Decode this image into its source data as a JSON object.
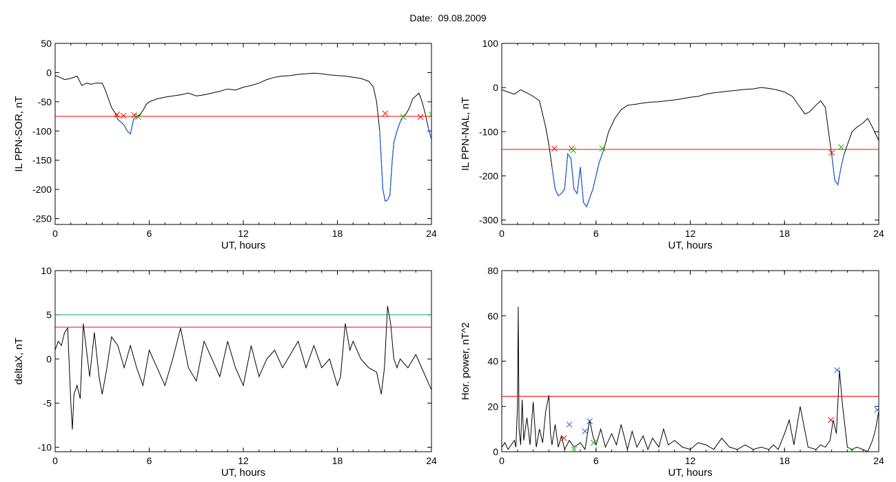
{
  "header": {
    "date_label": "Date:",
    "date_value": "09.08.2009"
  },
  "colors": {
    "trace": "#000000",
    "threshold": "#ff0000",
    "below_threshold": "#1f5fd6",
    "level2": "#00a0a0",
    "marker_red": "#ff0000",
    "marker_green": "#00c000",
    "marker_blue": "#1f5fd6"
  },
  "chart_data": [
    {
      "type": "line",
      "id": "sor",
      "xlabel": "UT, hours",
      "ylabel": "IL PPN-SOR, nT",
      "xlim": [
        0,
        24
      ],
      "ylim": [
        -260,
        50
      ],
      "xticks": [
        0,
        6,
        12,
        18,
        24
      ],
      "yticks": [
        50,
        0,
        -50,
        -100,
        -150,
        -200,
        -250
      ],
      "threshold": -75,
      "series": [
        {
          "x": [
            0,
            0.3,
            0.6,
            1,
            1.4,
            1.7,
            2,
            2.3,
            2.6,
            3,
            3.2,
            3.4,
            3.6,
            3.8,
            4,
            4.2,
            4.4,
            4.6,
            4.8,
            5,
            5.2,
            5.4,
            5.6,
            5.8,
            6,
            6.5,
            7,
            7.5,
            8,
            8.5,
            9,
            9.5,
            10,
            10.5,
            11,
            11.5,
            12,
            12.5,
            13,
            13.5,
            14,
            14.5,
            15,
            15.5,
            16,
            16.5,
            17,
            17.5,
            18,
            18.5,
            19,
            19.5,
            20,
            20.3,
            20.5,
            20.7,
            20.9,
            21.05,
            21.2,
            21.35,
            21.5,
            21.6,
            21.8,
            22,
            22.2,
            22.4,
            22.6,
            22.8,
            23,
            23.2,
            23.4,
            23.6,
            23.8,
            24
          ],
          "y": [
            -5,
            -8,
            -12,
            -10,
            -6,
            -22,
            -18,
            -20,
            -18,
            -18,
            -30,
            -45,
            -60,
            -68,
            -80,
            -85,
            -90,
            -100,
            -105,
            -80,
            -75,
            -72,
            -65,
            -55,
            -50,
            -45,
            -42,
            -40,
            -38,
            -35,
            -40,
            -38,
            -35,
            -32,
            -28,
            -30,
            -25,
            -22,
            -18,
            -12,
            -8,
            -6,
            -5,
            -3,
            -2,
            -1,
            -2,
            -4,
            -5,
            -6,
            -8,
            -10,
            -15,
            -25,
            -50,
            -100,
            -200,
            -220,
            -218,
            -210,
            -150,
            -120,
            -100,
            -85,
            -75,
            -70,
            -60,
            -45,
            -40,
            -35,
            -50,
            -70,
            -95,
            -115
          ]
        }
      ],
      "markers": [
        {
          "x": 3.95,
          "y": -72,
          "color": "red"
        },
        {
          "x": 4.35,
          "y": -74,
          "color": "red"
        },
        {
          "x": 5.05,
          "y": -73,
          "color": "red"
        },
        {
          "x": 5.3,
          "y": -76,
          "color": "green"
        },
        {
          "x": 21.05,
          "y": -70,
          "color": "red"
        },
        {
          "x": 22.2,
          "y": -76,
          "color": "green"
        },
        {
          "x": 23.3,
          "y": -76,
          "color": "red"
        },
        {
          "x": 24,
          "y": -72,
          "color": "green"
        }
      ]
    },
    {
      "type": "line",
      "id": "nal",
      "xlabel": "UT, hours",
      "ylabel": "IL PPN-NAL, nT",
      "xlim": [
        0,
        24
      ],
      "ylim": [
        -310,
        100
      ],
      "xticks": [
        0,
        6,
        12,
        18,
        24
      ],
      "yticks": [
        100,
        0,
        -100,
        -200,
        -300
      ],
      "threshold": -140,
      "series": [
        {
          "x": [
            0,
            0.4,
            0.8,
            1.2,
            1.6,
            2,
            2.4,
            2.8,
            3,
            3.2,
            3.4,
            3.6,
            3.8,
            4,
            4.2,
            4.4,
            4.6,
            4.8,
            5,
            5.2,
            5.4,
            5.6,
            5.8,
            6,
            6.2,
            6.5,
            6.8,
            7.2,
            7.6,
            8,
            8.5,
            9,
            9.5,
            10,
            10.5,
            11,
            11.5,
            12,
            12.5,
            13,
            13.5,
            14,
            14.5,
            15,
            15.5,
            16,
            16.5,
            17,
            17.5,
            18,
            18.5,
            19,
            19.3,
            19.6,
            20,
            20.3,
            20.6,
            20.8,
            21,
            21.2,
            21.4,
            21.6,
            21.8,
            22,
            22.3,
            22.6,
            23,
            23.3,
            23.6,
            24
          ],
          "y": [
            -5,
            -10,
            -15,
            -5,
            -12,
            -20,
            -30,
            -90,
            -130,
            -180,
            -230,
            -245,
            -240,
            -230,
            -150,
            -160,
            -230,
            -240,
            -180,
            -260,
            -270,
            -250,
            -230,
            -200,
            -170,
            -140,
            -100,
            -70,
            -50,
            -40,
            -38,
            -35,
            -33,
            -32,
            -30,
            -28,
            -25,
            -22,
            -20,
            -15,
            -12,
            -10,
            -8,
            -6,
            -4,
            -3,
            0,
            -2,
            -5,
            -10,
            -20,
            -45,
            -60,
            -55,
            -40,
            -30,
            -45,
            -100,
            -150,
            -210,
            -220,
            -180,
            -150,
            -130,
            -100,
            -90,
            -80,
            -70,
            -90,
            -120
          ]
        }
      ],
      "markers": [
        {
          "x": 3.35,
          "y": -138,
          "color": "red"
        },
        {
          "x": 4.45,
          "y": -138,
          "color": "red"
        },
        {
          "x": 4.55,
          "y": -142,
          "color": "green"
        },
        {
          "x": 6.4,
          "y": -138,
          "color": "green"
        },
        {
          "x": 21.0,
          "y": -148,
          "color": "red"
        },
        {
          "x": 21.6,
          "y": -135,
          "color": "green"
        }
      ]
    },
    {
      "type": "line",
      "id": "deltax",
      "xlabel": "UT, hours",
      "ylabel": "deltaX, nT",
      "xlim": [
        0,
        24
      ],
      "ylim": [
        -10.5,
        10
      ],
      "xticks": [
        0,
        6,
        12,
        18,
        24
      ],
      "yticks": [
        10,
        5,
        0,
        -5,
        -10
      ],
      "threshold": 3.6,
      "level2": 5,
      "series": [
        {
          "x": [
            0,
            0.2,
            0.4,
            0.6,
            0.8,
            1,
            1.1,
            1.2,
            1.4,
            1.6,
            1.8,
            2,
            2.2,
            2.5,
            2.8,
            3,
            3.3,
            3.6,
            4,
            4.4,
            4.8,
            5.2,
            5.6,
            6,
            6.5,
            7,
            7.5,
            8,
            8.5,
            9,
            9.5,
            10,
            10.5,
            11,
            11.5,
            12,
            12.5,
            13,
            13.5,
            14,
            14.5,
            15,
            15.5,
            16,
            16.5,
            17,
            17.5,
            18,
            18.2,
            18.5,
            18.8,
            19,
            19.5,
            20,
            20.5,
            20.8,
            21,
            21.2,
            21.4,
            21.6,
            21.8,
            22,
            22.5,
            23,
            23.5,
            24
          ],
          "y": [
            1,
            2,
            1.5,
            3,
            3.5,
            -5,
            -8,
            -4,
            -3,
            -4.5,
            4,
            1,
            -2,
            3,
            -2,
            -4,
            -1,
            2.5,
            1.5,
            -1,
            1.5,
            -1,
            -3,
            1,
            -1,
            -3,
            0,
            3.5,
            -1,
            -2.5,
            2,
            0,
            -2,
            2,
            -1,
            -3,
            1.5,
            -2,
            0,
            1,
            -1,
            0.5,
            2,
            -1,
            1.5,
            -1,
            0,
            -3,
            -2,
            4,
            1,
            2,
            0,
            -1,
            -1.5,
            -4,
            -1,
            6,
            4,
            0,
            -1,
            0,
            -1,
            0.5,
            -1.5,
            -3.5
          ]
        }
      ]
    },
    {
      "type": "line",
      "id": "power",
      "xlabel": "UT, hours",
      "ylabel": "Hor. power, nT^2",
      "xlim": [
        0,
        24
      ],
      "ylim": [
        0,
        80
      ],
      "xticks": [
        0,
        6,
        12,
        18,
        24
      ],
      "yticks": [
        80,
        60,
        40,
        20,
        0
      ],
      "threshold": 24.5,
      "series": [
        {
          "x": [
            0,
            0.2,
            0.4,
            0.6,
            0.8,
            0.9,
            1,
            1.05,
            1.1,
            1.2,
            1.3,
            1.4,
            1.6,
            1.8,
            2,
            2.2,
            2.4,
            2.6,
            2.8,
            3,
            3.1,
            3.2,
            3.4,
            3.6,
            3.8,
            4,
            4.3,
            4.6,
            5,
            5.3,
            5.6,
            5.8,
            6,
            6.3,
            6.6,
            7,
            7.3,
            7.6,
            8,
            8.3,
            8.6,
            9,
            9.3,
            9.6,
            10,
            10.3,
            10.6,
            11,
            11.5,
            12,
            12.5,
            13,
            13.5,
            14,
            14.5,
            15,
            15.5,
            16,
            16.5,
            17,
            17.3,
            17.6,
            18,
            18.3,
            18.6,
            19,
            19.5,
            20,
            20.3,
            20.6,
            20.9,
            21.1,
            21.3,
            21.5,
            21.7,
            22,
            22.3,
            22.6,
            23,
            23.3,
            23.6,
            23.8,
            24
          ],
          "y": [
            2,
            4,
            1,
            3,
            5,
            2,
            20,
            64,
            10,
            3,
            23,
            5,
            15,
            3,
            22,
            2,
            10,
            4,
            18,
            25,
            8,
            3,
            12,
            2,
            7,
            1,
            5,
            2,
            4,
            1,
            14,
            7,
            3,
            10,
            2,
            8,
            3,
            12,
            1,
            9,
            2,
            7,
            1,
            6,
            2,
            10,
            3,
            5,
            2,
            1,
            4,
            3,
            1,
            6,
            2,
            1,
            3,
            1,
            2,
            1,
            3,
            1,
            8,
            14,
            3,
            20,
            2,
            1,
            3,
            2,
            5,
            14,
            8,
            36,
            20,
            2,
            1,
            2,
            1,
            0,
            5,
            10,
            18
          ]
        }
      ],
      "markers": [
        {
          "x": 3.95,
          "y": 6,
          "color": "red"
        },
        {
          "x": 4.3,
          "y": 12,
          "color": "blue"
        },
        {
          "x": 4.6,
          "y": 1,
          "color": "green"
        },
        {
          "x": 5.3,
          "y": 9,
          "color": "blue"
        },
        {
          "x": 5.6,
          "y": 13.5,
          "color": "blue"
        },
        {
          "x": 5.85,
          "y": 4,
          "color": "green"
        },
        {
          "x": 20.95,
          "y": 14,
          "color": "red"
        },
        {
          "x": 21.35,
          "y": 36,
          "color": "blue"
        },
        {
          "x": 22.3,
          "y": 0.5,
          "color": "green"
        },
        {
          "x": 23.9,
          "y": 18.5,
          "color": "blue"
        }
      ]
    }
  ]
}
